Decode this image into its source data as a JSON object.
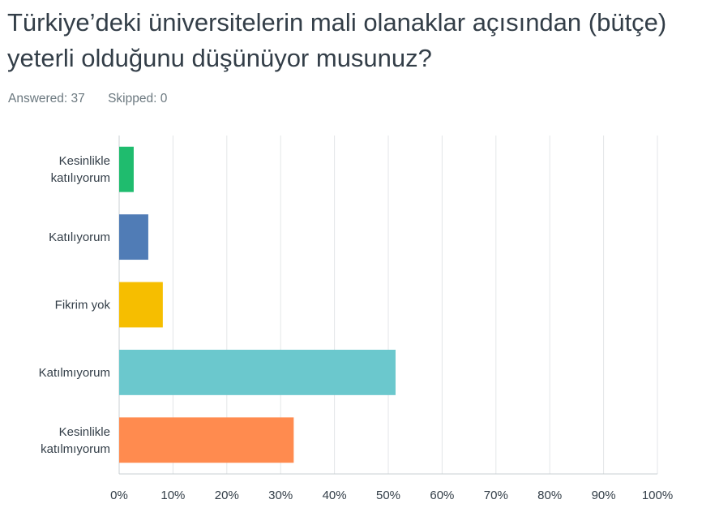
{
  "question": {
    "title": "Türkiye’deki üniversitelerin mali olanaklar açısından (bütçe) yeterli olduğunu düşünüyor musunuz?"
  },
  "stats": {
    "answered": "Answered: 37",
    "skipped": "Skipped: 0"
  },
  "chart_data": {
    "type": "bar",
    "orientation": "horizontal",
    "categories": [
      [
        "Kesinlikle",
        "katılıyorum"
      ],
      [
        "Katılıyorum"
      ],
      [
        "Fikrim yok"
      ],
      [
        "Katılmıyorum"
      ],
      [
        "Kesinlikle",
        "katılmıyorum"
      ]
    ],
    "values": [
      2.7,
      5.41,
      8.11,
      51.35,
      32.43
    ],
    "colors": [
      "#1fbc6e",
      "#507cb6",
      "#f6be00",
      "#6bc8cd",
      "#ff8b4f"
    ],
    "xlim": [
      0,
      100
    ],
    "xticks": [
      "0%",
      "10%",
      "20%",
      "30%",
      "40%",
      "50%",
      "60%",
      "70%",
      "80%",
      "90%",
      "100%"
    ],
    "grid": true,
    "value_unit": "%"
  }
}
